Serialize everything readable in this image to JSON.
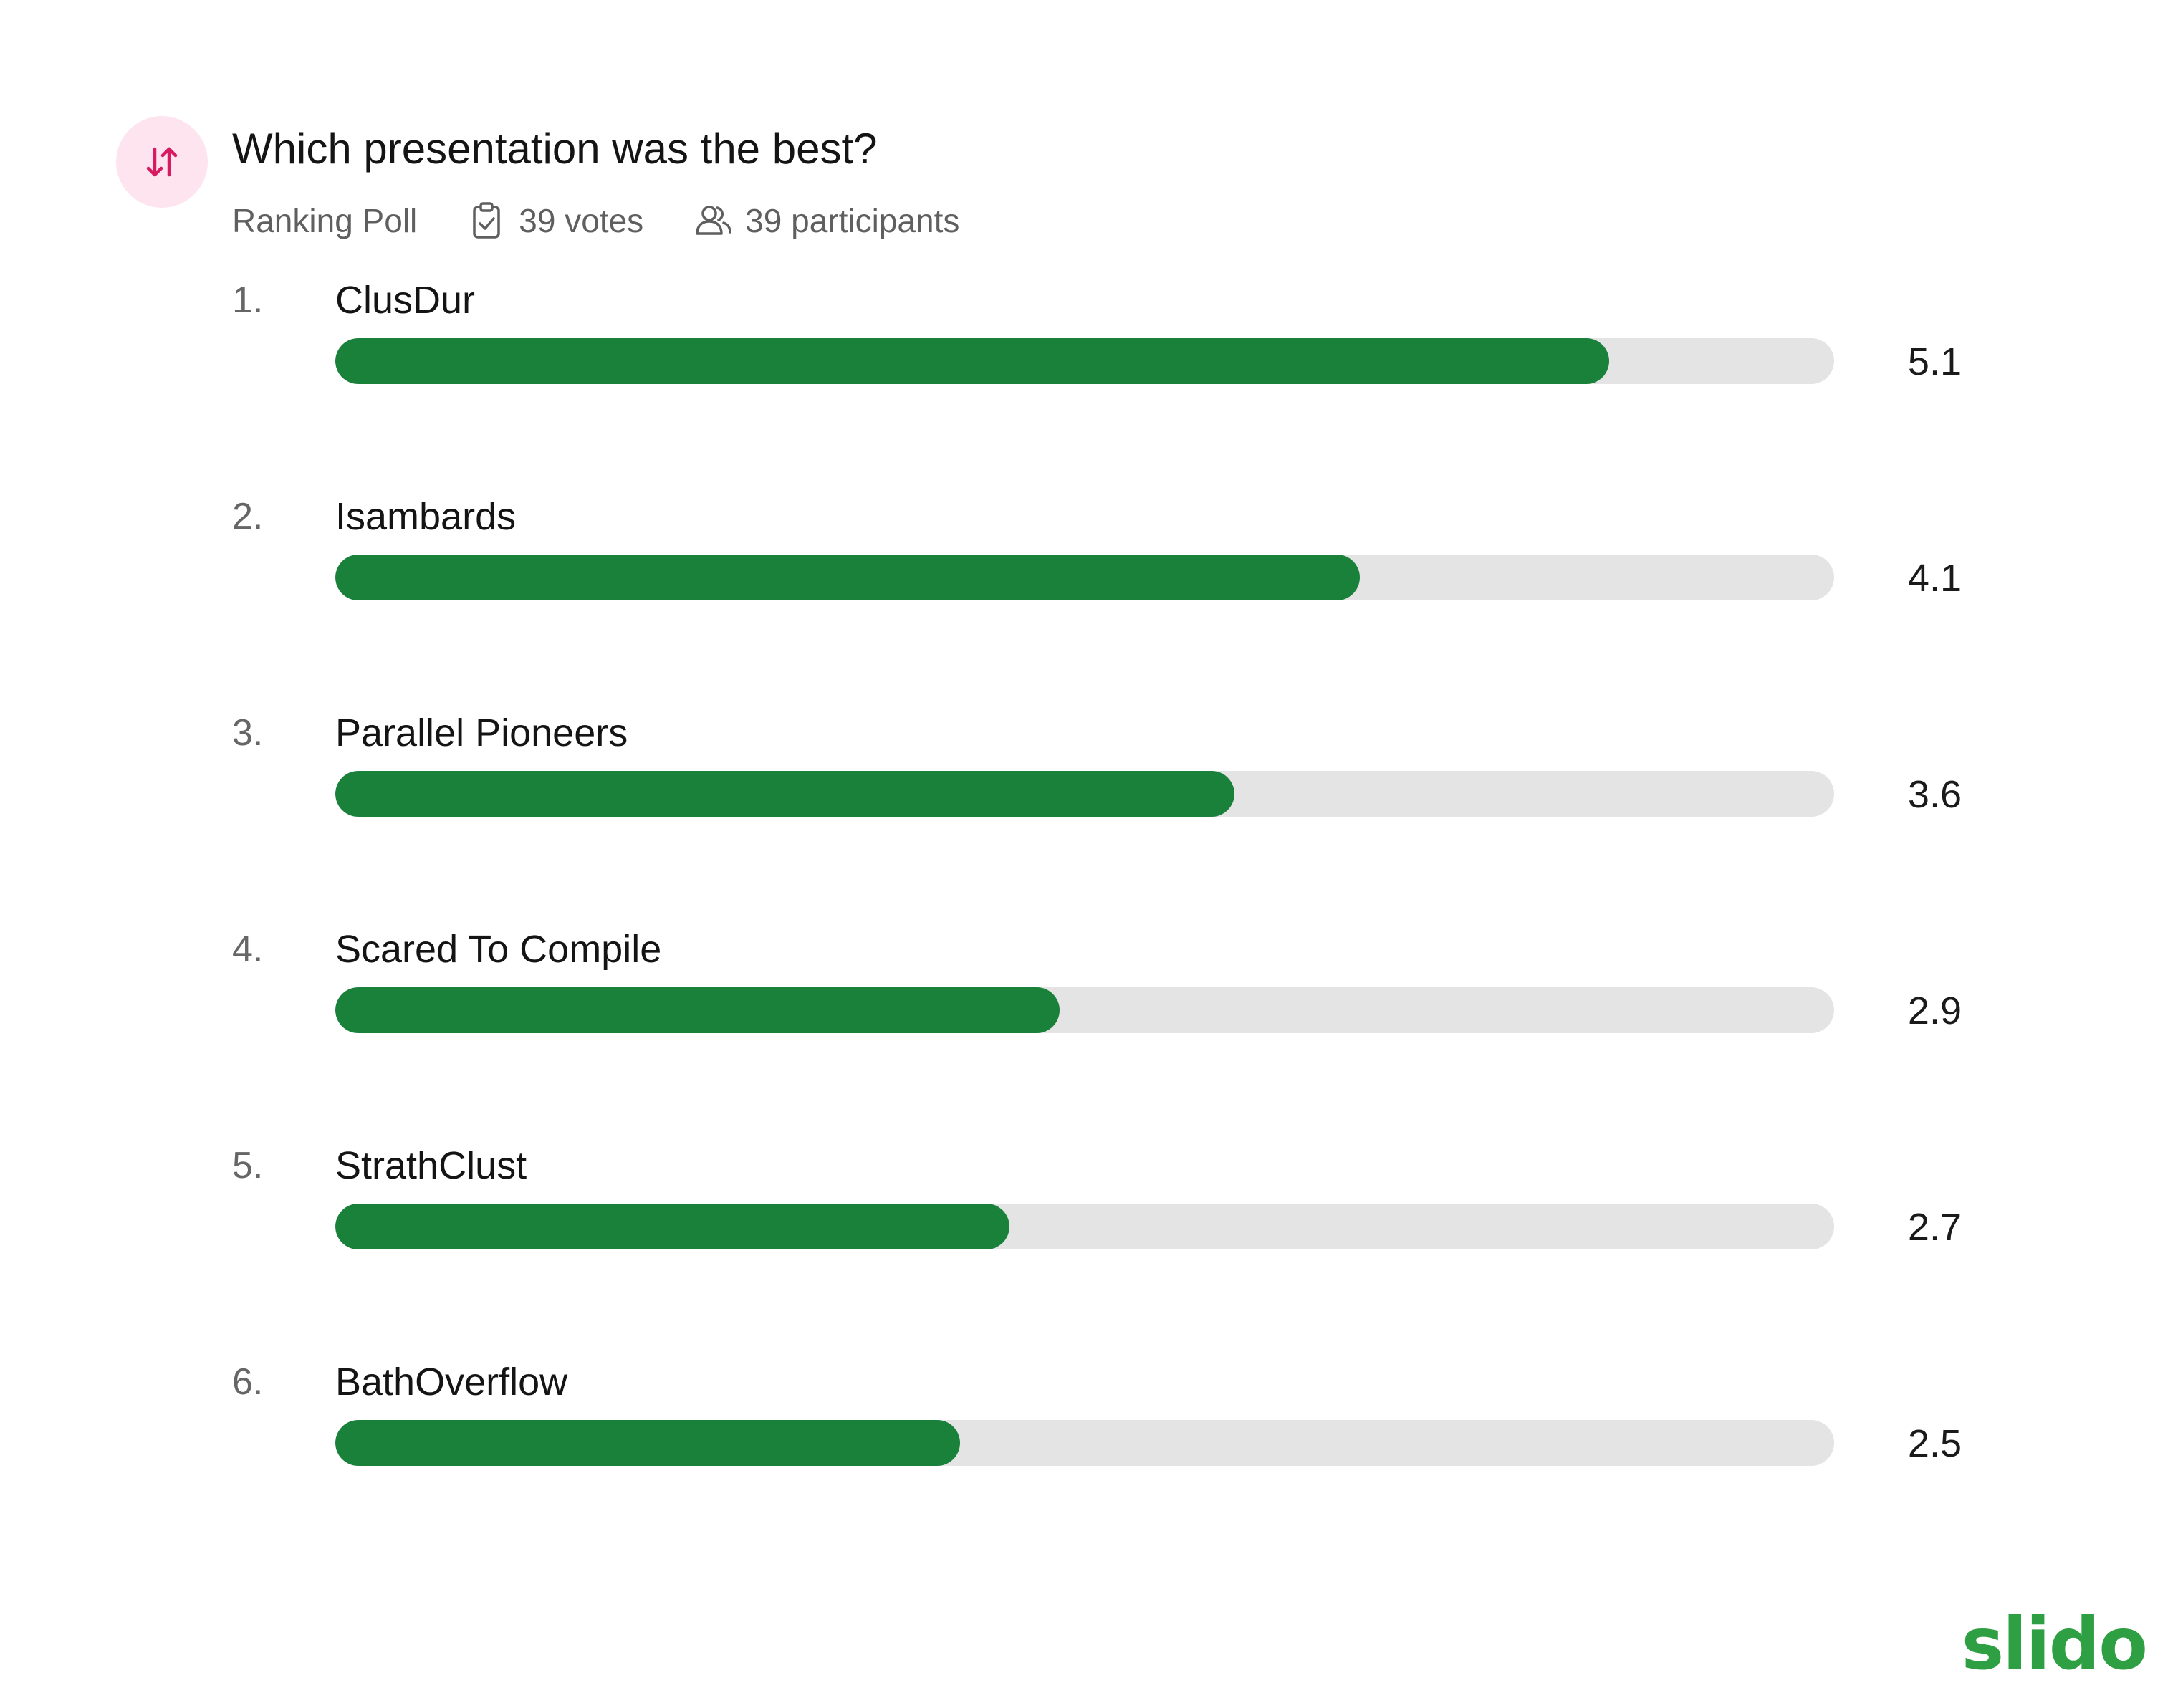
{
  "poll": {
    "title": "Which presentation was the best?",
    "type_label": "Ranking Poll",
    "votes_label": "39 votes",
    "participants_label": "39 participants",
    "icons": {
      "poll_type": "sort-arrows-icon",
      "votes": "clipboard-check-icon",
      "participants": "users-icon"
    },
    "colors": {
      "accent": "#d81b60",
      "icon_bg": "#fde4ef",
      "bar_fill": "#1a813b",
      "bar_track": "#e4e4e4"
    },
    "max_score": 6
  },
  "options": [
    {
      "rank": "1.",
      "label": "ClusDur",
      "score_label": "5.1",
      "score": 5.1
    },
    {
      "rank": "2.",
      "label": "Isambards",
      "score_label": "4.1",
      "score": 4.1
    },
    {
      "rank": "3.",
      "label": "Parallel Pioneers",
      "score_label": "3.6",
      "score": 3.6
    },
    {
      "rank": "4.",
      "label": "Scared To Compile",
      "score_label": "2.9",
      "score": 2.9
    },
    {
      "rank": "5.",
      "label": "StrathClust",
      "score_label": "2.7",
      "score": 2.7
    },
    {
      "rank": "6.",
      "label": "BathOverflow",
      "score_label": "2.5",
      "score": 2.5
    }
  ],
  "brand": {
    "logo_text": "slido",
    "color": "#2ea043"
  }
}
